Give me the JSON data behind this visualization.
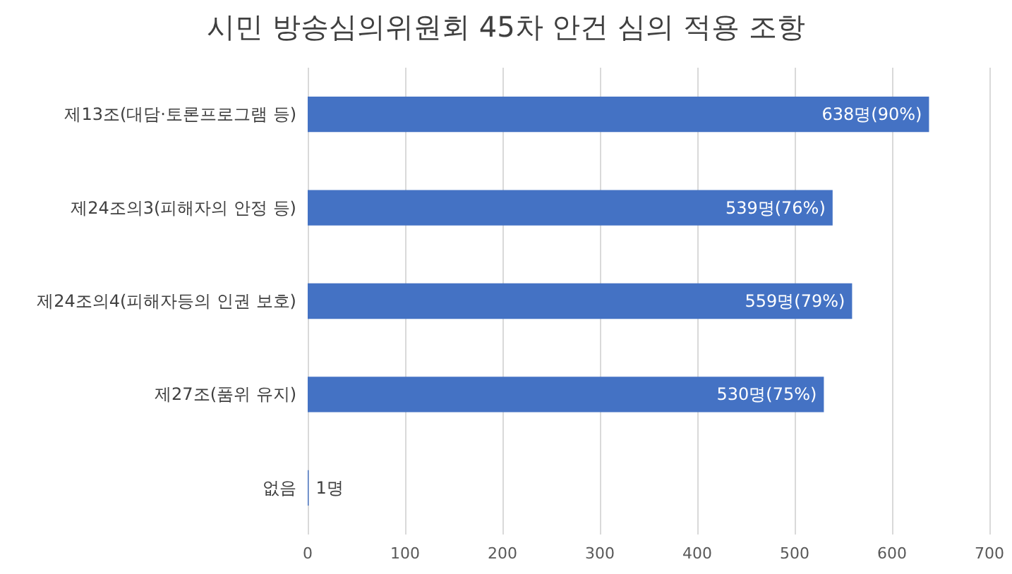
{
  "chart_data": {
    "type": "bar",
    "orientation": "horizontal",
    "title": "시민 방송심의위원회 45차 안건 심의 적용 조항",
    "categories": [
      "제13조(대담·토론프로그램 등)",
      "제24조의3(피해자의 안정 등)",
      "제24조의4(피해자등의 인권 보호)",
      "제27조(품위 유지)",
      "없음"
    ],
    "values": [
      638,
      539,
      559,
      530,
      1
    ],
    "value_labels": [
      "638명(90%)",
      "539명(76%)",
      "559명(79%)",
      "530명(75%)",
      "1명"
    ],
    "color": "#4472c4",
    "xlim": [
      0,
      700
    ],
    "xticks": [
      0,
      100,
      200,
      300,
      400,
      500,
      600,
      700
    ],
    "grid": "x"
  }
}
